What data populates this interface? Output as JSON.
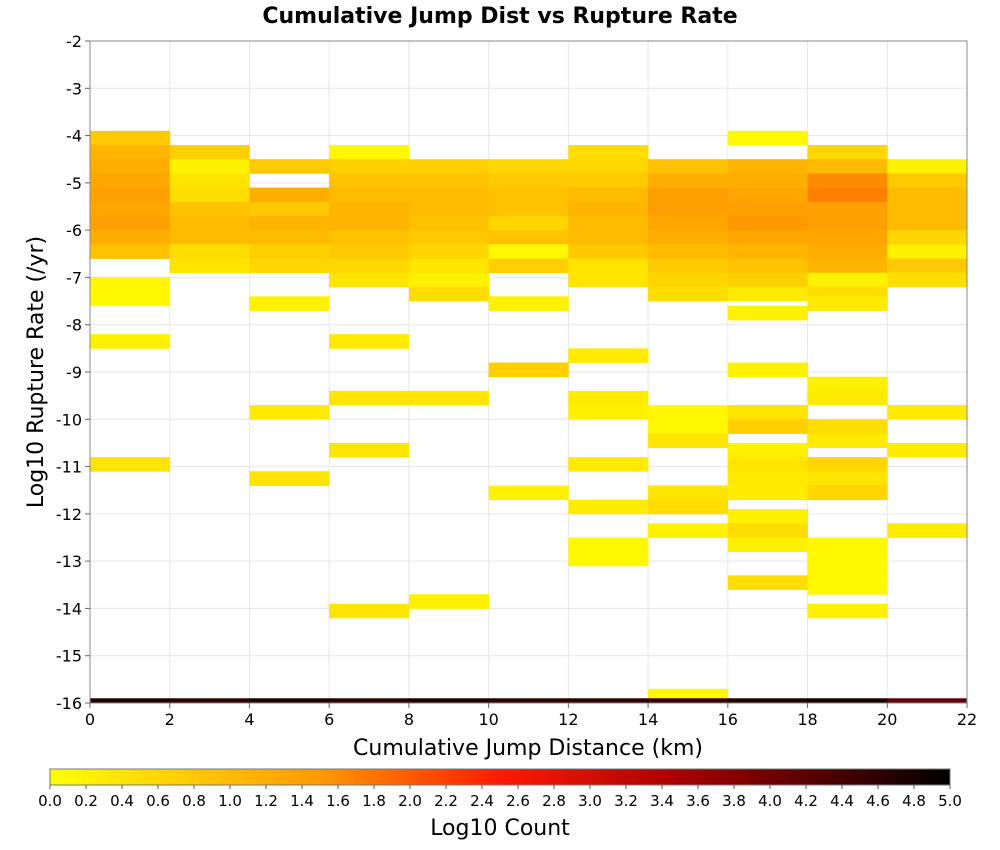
{
  "chart_data": {
    "type": "heatmap",
    "title": "Cumulative Jump Dist vs Rupture Rate",
    "xlabel": "Cumulative Jump Distance (km)",
    "ylabel": "Log10 Rupture Rate (/yr)",
    "xlim": [
      0,
      22
    ],
    "ylim": [
      -16,
      -2
    ],
    "x_ticks": [
      0,
      2,
      4,
      6,
      8,
      10,
      12,
      14,
      16,
      18,
      20,
      22
    ],
    "y_ticks": [
      -2,
      -3,
      -4,
      -5,
      -6,
      -7,
      -8,
      -9,
      -10,
      -11,
      -12,
      -13,
      -14,
      -15,
      -16
    ],
    "x_bin_width": 2,
    "y_bin_height": 0.3,
    "grid": true,
    "colorbar": {
      "label": "Log10 Count",
      "range": [
        0.0,
        5.0
      ],
      "ticks": [
        "0.0",
        "0.2",
        "0.4",
        "0.6",
        "0.8",
        "1.0",
        "1.2",
        "1.4",
        "1.6",
        "1.8",
        "2.0",
        "2.2",
        "2.4",
        "2.6",
        "2.8",
        "3.0",
        "3.2",
        "3.4",
        "3.6",
        "3.8",
        "4.0",
        "4.2",
        "4.4",
        "4.6",
        "4.8",
        "5.0"
      ],
      "placement": "bottom"
    },
    "cells": [
      [
        0,
        -3.9,
        0.8
      ],
      [
        0,
        -4.2,
        1.1
      ],
      [
        0,
        -4.5,
        1.2
      ],
      [
        0,
        -4.8,
        1.3
      ],
      [
        0,
        -5.1,
        1.4
      ],
      [
        0,
        -5.4,
        1.3
      ],
      [
        0,
        -5.7,
        1.4
      ],
      [
        0,
        -6.0,
        1.2
      ],
      [
        0,
        -6.3,
        0.9
      ],
      [
        0,
        -7.0,
        0.1
      ],
      [
        0,
        -7.3,
        0.1
      ],
      [
        0,
        -8.2,
        0.2
      ],
      [
        0,
        -10.8,
        0.4
      ],
      [
        2,
        -4.2,
        0.7
      ],
      [
        2,
        -4.5,
        0.2
      ],
      [
        2,
        -4.8,
        0.4
      ],
      [
        2,
        -5.1,
        0.5
      ],
      [
        2,
        -5.4,
        0.9
      ],
      [
        2,
        -5.7,
        1.0
      ],
      [
        2,
        -6.0,
        1.0
      ],
      [
        2,
        -6.3,
        0.5
      ],
      [
        2,
        -6.6,
        0.4
      ],
      [
        4,
        -4.5,
        0.8
      ],
      [
        4,
        -5.1,
        1.2
      ],
      [
        4,
        -5.4,
        0.8
      ],
      [
        4,
        -5.7,
        1.1
      ],
      [
        4,
        -6.0,
        1.0
      ],
      [
        4,
        -6.3,
        0.7
      ],
      [
        4,
        -6.6,
        0.6
      ],
      [
        4,
        -7.4,
        0.2
      ],
      [
        4,
        -9.7,
        0.3
      ],
      [
        4,
        -11.1,
        0.4
      ],
      [
        6,
        -4.2,
        0.1
      ],
      [
        6,
        -4.5,
        0.7
      ],
      [
        6,
        -4.8,
        0.9
      ],
      [
        6,
        -5.1,
        1.0
      ],
      [
        6,
        -5.4,
        1.1
      ],
      [
        6,
        -5.7,
        1.1
      ],
      [
        6,
        -6.0,
        0.9
      ],
      [
        6,
        -6.3,
        0.8
      ],
      [
        6,
        -6.6,
        0.6
      ],
      [
        6,
        -6.9,
        0.4
      ],
      [
        6,
        -8.2,
        0.3
      ],
      [
        6,
        -9.4,
        0.4
      ],
      [
        6,
        -10.5,
        0.4
      ],
      [
        6,
        -13.9,
        0.4
      ],
      [
        8,
        -4.5,
        0.7
      ],
      [
        8,
        -4.8,
        0.9
      ],
      [
        8,
        -5.1,
        1.0
      ],
      [
        8,
        -5.4,
        1.0
      ],
      [
        8,
        -5.7,
        0.9
      ],
      [
        8,
        -6.0,
        0.8
      ],
      [
        8,
        -6.3,
        0.6
      ],
      [
        8,
        -6.6,
        0.4
      ],
      [
        8,
        -6.9,
        0.2
      ],
      [
        8,
        -7.2,
        0.5
      ],
      [
        8,
        -9.4,
        0.4
      ],
      [
        8,
        -13.7,
        0.2
      ],
      [
        10,
        -4.5,
        0.6
      ],
      [
        10,
        -4.8,
        0.8
      ],
      [
        10,
        -5.1,
        0.9
      ],
      [
        10,
        -5.4,
        0.9
      ],
      [
        10,
        -5.7,
        0.6
      ],
      [
        10,
        -6.0,
        0.9
      ],
      [
        10,
        -6.3,
        0.1
      ],
      [
        10,
        -6.6,
        0.7
      ],
      [
        10,
        -7.4,
        0.2
      ],
      [
        10,
        -8.8,
        0.7
      ],
      [
        10,
        -11.4,
        0.2
      ],
      [
        12,
        -4.2,
        0.5
      ],
      [
        12,
        -4.5,
        0.6
      ],
      [
        12,
        -4.8,
        0.8
      ],
      [
        12,
        -5.1,
        1.0
      ],
      [
        12,
        -5.4,
        1.1
      ],
      [
        12,
        -5.7,
        1.0
      ],
      [
        12,
        -6.0,
        1.0
      ],
      [
        12,
        -6.3,
        0.8
      ],
      [
        12,
        -6.6,
        0.4
      ],
      [
        12,
        -6.9,
        0.4
      ],
      [
        12,
        -8.5,
        0.3
      ],
      [
        12,
        -9.4,
        0.3
      ],
      [
        12,
        -9.7,
        0.2
      ],
      [
        12,
        -10.8,
        0.3
      ],
      [
        12,
        -11.7,
        0.3
      ],
      [
        12,
        -12.5,
        0.1
      ],
      [
        12,
        -12.8,
        0.1
      ],
      [
        14,
        -4.5,
        0.9
      ],
      [
        14,
        -4.8,
        1.2
      ],
      [
        14,
        -5.1,
        1.4
      ],
      [
        14,
        -5.4,
        1.4
      ],
      [
        14,
        -5.7,
        1.3
      ],
      [
        14,
        -6.0,
        1.2
      ],
      [
        14,
        -6.3,
        1.0
      ],
      [
        14,
        -6.6,
        0.8
      ],
      [
        14,
        -6.9,
        0.6
      ],
      [
        14,
        -7.2,
        0.5
      ],
      [
        14,
        -9.7,
        0.1
      ],
      [
        14,
        -10.0,
        0.1
      ],
      [
        14,
        -10.3,
        0.4
      ],
      [
        14,
        -11.4,
        0.4
      ],
      [
        14,
        -11.7,
        0.5
      ],
      [
        14,
        -12.2,
        0.2
      ],
      [
        14,
        -15.7,
        0.1
      ],
      [
        16,
        -3.9,
        0.1
      ],
      [
        16,
        -4.5,
        1.1
      ],
      [
        16,
        -4.8,
        1.2
      ],
      [
        16,
        -5.1,
        1.3
      ],
      [
        16,
        -5.4,
        1.4
      ],
      [
        16,
        -5.7,
        1.5
      ],
      [
        16,
        -6.0,
        1.3
      ],
      [
        16,
        -6.3,
        1.1
      ],
      [
        16,
        -6.6,
        0.9
      ],
      [
        16,
        -6.9,
        0.7
      ],
      [
        16,
        -7.2,
        0.3
      ],
      [
        16,
        -7.6,
        0.2
      ],
      [
        16,
        -8.8,
        0.2
      ],
      [
        16,
        -9.7,
        0.4
      ],
      [
        16,
        -10.0,
        0.7
      ],
      [
        16,
        -10.5,
        0.2
      ],
      [
        16,
        -10.8,
        0.4
      ],
      [
        16,
        -11.1,
        0.3
      ],
      [
        16,
        -11.4,
        0.3
      ],
      [
        16,
        -11.9,
        0.2
      ],
      [
        16,
        -12.2,
        0.5
      ],
      [
        16,
        -12.5,
        0.2
      ],
      [
        16,
        -13.3,
        0.5
      ],
      [
        18,
        -4.2,
        0.6
      ],
      [
        18,
        -4.5,
        1.0
      ],
      [
        18,
        -4.8,
        1.6
      ],
      [
        18,
        -5.1,
        1.7
      ],
      [
        18,
        -5.4,
        1.4
      ],
      [
        18,
        -5.7,
        1.4
      ],
      [
        18,
        -6.0,
        1.3
      ],
      [
        18,
        -6.3,
        1.2
      ],
      [
        18,
        -6.6,
        1.1
      ],
      [
        18,
        -6.9,
        0.2
      ],
      [
        18,
        -7.2,
        0.5
      ],
      [
        18,
        -7.4,
        0.3
      ],
      [
        18,
        -9.1,
        0.2
      ],
      [
        18,
        -9.4,
        0.3
      ],
      [
        18,
        -10.0,
        0.5
      ],
      [
        18,
        -10.3,
        0.3
      ],
      [
        18,
        -10.8,
        0.6
      ],
      [
        18,
        -11.1,
        0.4
      ],
      [
        18,
        -11.4,
        0.6
      ],
      [
        18,
        -12.5,
        0.1
      ],
      [
        18,
        -12.8,
        0.1
      ],
      [
        18,
        -13.1,
        0.1
      ],
      [
        18,
        -13.4,
        0.1
      ],
      [
        18,
        -13.9,
        0.2
      ],
      [
        20,
        -4.5,
        0.2
      ],
      [
        20,
        -4.8,
        0.8
      ],
      [
        20,
        -5.1,
        1.0
      ],
      [
        20,
        -5.4,
        1.0
      ],
      [
        20,
        -5.7,
        1.0
      ],
      [
        20,
        -6.0,
        0.6
      ],
      [
        20,
        -6.3,
        0.2
      ],
      [
        20,
        -6.6,
        0.8
      ],
      [
        20,
        -6.9,
        0.5
      ],
      [
        20,
        -9.7,
        0.3
      ],
      [
        20,
        -10.5,
        0.3
      ],
      [
        20,
        -12.2,
        0.3
      ]
    ],
    "bottom_row": {
      "y": -15.9,
      "values": [
        4.7,
        4.6,
        4.7,
        4.6,
        4.7,
        4.6,
        4.6,
        4.5,
        4.7,
        4.8,
        4.1
      ]
    }
  }
}
